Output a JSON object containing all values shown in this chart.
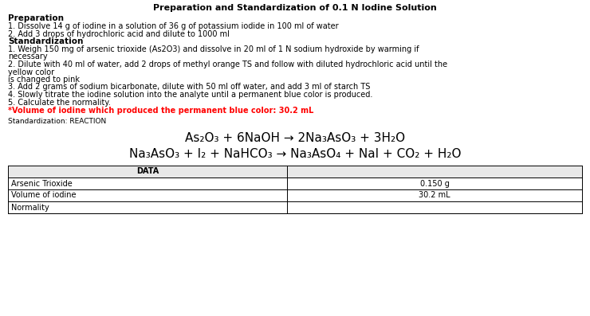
{
  "title": "Preparation and Standardization of 0.1 N Iodine Solution",
  "prep_header": "Preparation",
  "prep_lines": [
    "1. Dissolve 14 g of iodine in a solution of 36 g of potassium iodide in 100 ml of water",
    "2. Add 3 drops of hydrochloric acid and dilute to 1000 ml"
  ],
  "std_header": "Standardization",
  "std_lines": [
    "1. Weigh 150 mg of arsenic trioxide (As2O3) and dissolve in 20 ml of 1 N sodium hydroxide by warming if",
    "necessary",
    "2. Dilute with 40 ml of water, add 2 drops of methyl orange TS and follow with diluted hydrochloric acid until the",
    "yellow color",
    "is changed to pink",
    "3. Add 2 grams of sodium bicarbonate, dilute with 50 ml off water, and add 3 ml of starch TS",
    "4. Slowly titrate the iodine solution into the analyte until a permanent blue color is produced.",
    "5. Calculate the normality."
  ],
  "red_line": "*Volume of iodine which produced the permanent blue color: 30.2 mL",
  "rxn_label": "Standardization: REACTION",
  "eq1": "As₂O₃ + 6NaOH → 2Na₃AsO₃ + 3H₂O",
  "eq2": "Na₃AsO₃ + I₂ + NaHCO₃ → Na₃AsO₄ + NaI + CO₂ + H₂O",
  "table_header": "DATA",
  "table_rows": [
    [
      "Arsenic Trioxide",
      "0.150 g"
    ],
    [
      "Volume of iodine",
      "30.2 mL"
    ],
    [
      "Normality",
      ""
    ]
  ],
  "bg_color": "#ffffff",
  "text_color": "#000000",
  "red_color": "#ff0000",
  "title_fontsize": 8.0,
  "body_fontsize": 7.0,
  "bold_fontsize": 7.5,
  "rxn_label_fontsize": 6.5,
  "eq_fontsize": 11.0,
  "table_fontsize": 7.0
}
